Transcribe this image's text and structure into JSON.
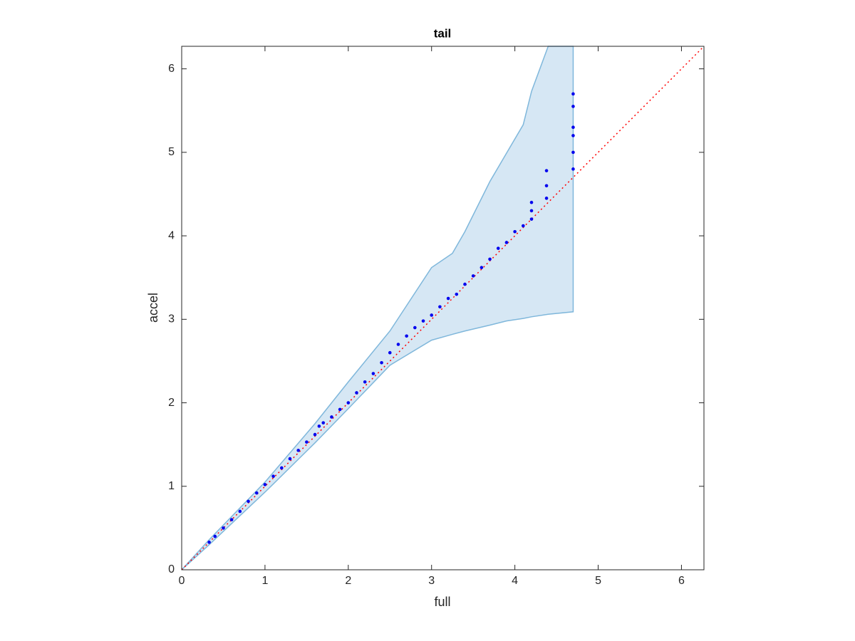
{
  "chart_data": {
    "type": "scatter",
    "title": "tail",
    "x_label": "full",
    "y_label": "accel",
    "xlim": [
      0,
      6.27
    ],
    "ylim": [
      0,
      6.27
    ],
    "xticks": [
      0,
      1,
      2,
      3,
      4,
      5,
      6
    ],
    "yticks": [
      0,
      1,
      2,
      3,
      4,
      5,
      6
    ],
    "band": {
      "color": "#d6e7f4",
      "edge_color": "#7fb7db",
      "x": [
        0,
        0.33,
        1,
        1.6,
        2,
        2.5,
        3,
        3.25,
        3.4,
        3.7,
        3.9,
        4.1,
        4.2,
        4.4,
        4.7
      ],
      "upper": [
        0,
        0.36,
        1.05,
        1.75,
        2.25,
        2.86,
        3.62,
        3.79,
        4.05,
        4.65,
        4.99,
        5.33,
        5.73,
        6.27,
        6.27
      ],
      "lower": [
        0,
        0.3,
        0.93,
        1.52,
        1.93,
        2.45,
        2.75,
        2.82,
        2.86,
        2.93,
        2.98,
        3.01,
        3.03,
        3.06,
        3.09
      ]
    },
    "reference_line": {
      "color": "#ff0000",
      "x": [
        0,
        6.27
      ],
      "values": [
        0,
        6.27
      ]
    },
    "points": {
      "color": "#0000ee",
      "x": [
        0.33,
        0.4,
        0.5,
        0.6,
        0.7,
        0.8,
        0.9,
        1,
        1.1,
        1.2,
        1.3,
        1.4,
        1.5,
        1.6,
        1.65,
        1.7,
        1.8,
        1.9,
        2,
        2.1,
        2.2,
        2.3,
        2.4,
        2.5,
        2.6,
        2.7,
        2.8,
        2.9,
        3,
        3.1,
        3.2,
        3.3,
        3.4,
        3.5,
        3.6,
        3.7,
        3.8,
        3.9,
        4,
        4.1,
        4.2,
        4.2,
        4.2,
        4.38,
        4.38,
        4.38,
        4.7,
        4.7,
        4.7,
        4.7,
        4.7,
        4.7
      ],
      "values": [
        0.33,
        0.4,
        0.5,
        0.6,
        0.7,
        0.82,
        0.92,
        1.02,
        1.12,
        1.22,
        1.33,
        1.43,
        1.53,
        1.62,
        1.72,
        1.76,
        1.83,
        1.92,
        2.0,
        2.12,
        2.25,
        2.35,
        2.48,
        2.6,
        2.7,
        2.8,
        2.9,
        2.98,
        3.05,
        3.15,
        3.25,
        3.3,
        3.42,
        3.52,
        3.62,
        3.72,
        3.85,
        3.92,
        4.05,
        4.12,
        4.2,
        4.3,
        4.4,
        4.45,
        4.6,
        4.78,
        4.8,
        5.0,
        5.2,
        5.3,
        5.55,
        5.7
      ]
    }
  }
}
